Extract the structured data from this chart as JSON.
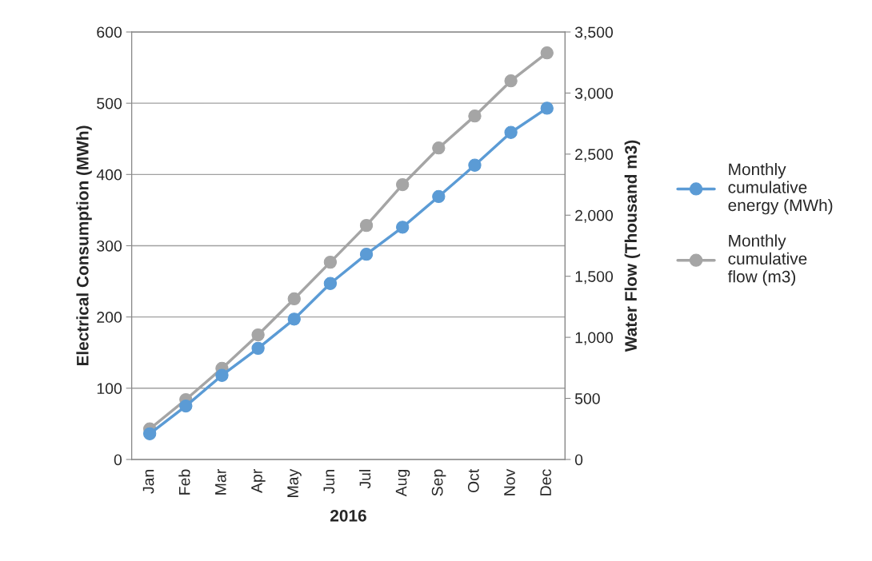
{
  "chart_data": {
    "type": "line",
    "xlabel": "2016",
    "ylabel": "Electrical Consumption (MWh)",
    "y2label": "Water Flow (Thousand m3)",
    "categories": [
      "Jan",
      "Feb",
      "Mar",
      "Apr",
      "May",
      "Jun",
      "Jul",
      "Aug",
      "Sep",
      "Oct",
      "Nov",
      "Dec"
    ],
    "series": [
      {
        "name": "Monthly cumulative energy (MWh)",
        "color": "#5b9bd5",
        "values": [
          36,
          75,
          118,
          156,
          197,
          247,
          288,
          326,
          369,
          413,
          459,
          493
        ]
      },
      {
        "name": "Monthly cumulative flow (m3)",
        "color": "#a5a5a5",
        "axis": "y2",
        "values": [
          250,
          490,
          746,
          1020,
          1315,
          1615,
          1916,
          2250,
          2550,
          2812,
          3100,
          3329
        ]
      }
    ],
    "ylim": [
      0,
      600
    ],
    "yticks": [
      0,
      100,
      200,
      300,
      400,
      500,
      600
    ],
    "y2lim": [
      0,
      3500
    ],
    "y2ticks": [
      {
        "value": 0,
        "label": "0"
      },
      {
        "value": 500,
        "label": "500"
      },
      {
        "value": 1000,
        "label": "1,000"
      },
      {
        "value": 1500,
        "label": "1,500"
      },
      {
        "value": 2000,
        "label": "2,000"
      },
      {
        "value": 2500,
        "label": "2,500"
      },
      {
        "value": 3000,
        "label": "3,000"
      },
      {
        "value": 3500,
        "label": "3,500"
      }
    ],
    "grid": "y",
    "legend": "right",
    "marker": "circle",
    "line_style": "solid"
  }
}
